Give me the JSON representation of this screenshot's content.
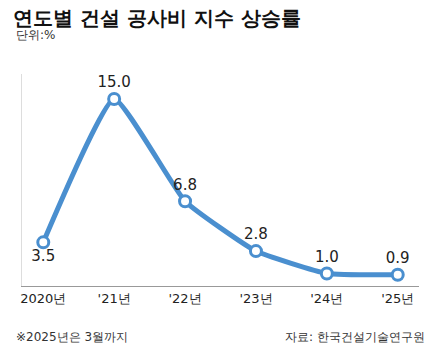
{
  "chart_data": {
    "type": "line",
    "title": "연도별 건설 공사비 지수 상승률",
    "subtitle": "단위:%",
    "categories": [
      "2020년",
      "'21년",
      "'22년",
      "'23년",
      "'24년",
      "'25년"
    ],
    "values": [
      3.5,
      15.0,
      6.8,
      2.8,
      1.0,
      0.9
    ],
    "value_labels": [
      "3.5",
      "15.0",
      "6.8",
      "2.8",
      "1.0",
      "0.9"
    ],
    "color": "#4a8fcf",
    "marker": "circle",
    "ylim": [
      0,
      17
    ],
    "yticks": [],
    "tick_labels": "x",
    "data_labels": true,
    "grid": false,
    "annotations": [
      "※2025년은 3월까지",
      "자료: 한국건설기술연구원"
    ]
  }
}
